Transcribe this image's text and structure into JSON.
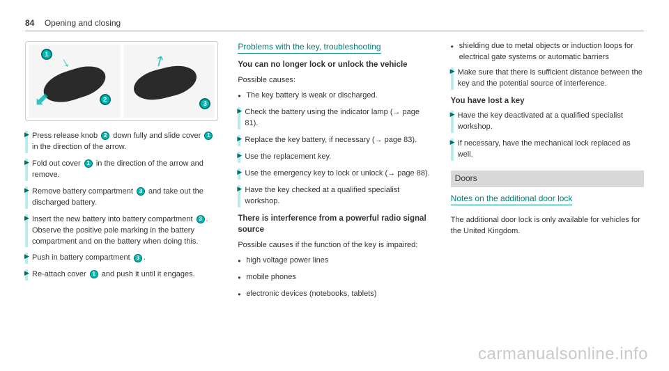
{
  "header": {
    "pageNumber": "84",
    "section": "Opening and closing"
  },
  "col1": {
    "steps": [
      {
        "parts": [
          "Press release knob ",
          {
            "num": "2"
          },
          " down fully and slide cover ",
          {
            "num": "1"
          },
          " in the direction of the arrow."
        ]
      },
      {
        "parts": [
          "Fold out cover ",
          {
            "num": "1"
          },
          " in the direction of the arrow and remove."
        ]
      },
      {
        "parts": [
          "Remove battery compartment ",
          {
            "num": "3"
          },
          " and take out the discharged battery."
        ]
      },
      {
        "parts": [
          "Insert the new battery into battery compartment ",
          {
            "num": "3"
          },
          ". Observe the positive pole marking in the battery compartment and on the battery when doing this."
        ]
      },
      {
        "parts": [
          "Push in battery compartment ",
          {
            "num": "3"
          },
          "."
        ]
      },
      {
        "parts": [
          "Re-attach cover ",
          {
            "num": "1"
          },
          " and push it until it engages."
        ]
      }
    ]
  },
  "col2": {
    "headingTeal": "Problems with the key, troubleshooting",
    "sub1": "You can no longer lock or unlock the vehicle",
    "possible": "Possible causes:",
    "bullets1": [
      "The key battery is weak or discharged."
    ],
    "steps1": [
      "Check the battery using the indicator lamp (→ page 81).",
      "Replace the key battery, if necessary (→ page 83).",
      "Use the replacement key.",
      "Use the emergency key to lock or unlock (→ page 88).",
      "Have the key checked at a qualified specialist workshop."
    ],
    "sub2": "There is interference from a powerful radio signal source",
    "possible2": "Possible causes if the function of the key is impaired:",
    "bullets2": [
      "high voltage power lines",
      "mobile phones",
      "electronic devices (notebooks, tablets)"
    ]
  },
  "col3": {
    "bullets3": [
      "shielding due to metal objects or induction loops for electrical gate systems or automatic barriers"
    ],
    "steps3": [
      "Make sure that there is sufficient distance between the key and the potential source of interference."
    ],
    "sub3": "You have lost a key",
    "steps4": [
      "Have the key deactivated at a qualified specialist workshop.",
      "If necessary, have the mechanical lock replaced as well."
    ],
    "band": "Doors",
    "headingTeal2": "Notes on the additional door lock",
    "body": "The additional door lock is only available for vehicles for the United Kingdom."
  },
  "watermark": "carmanualsonline.info",
  "callouts": {
    "c1": "1",
    "c2": "2",
    "c3": "3"
  }
}
